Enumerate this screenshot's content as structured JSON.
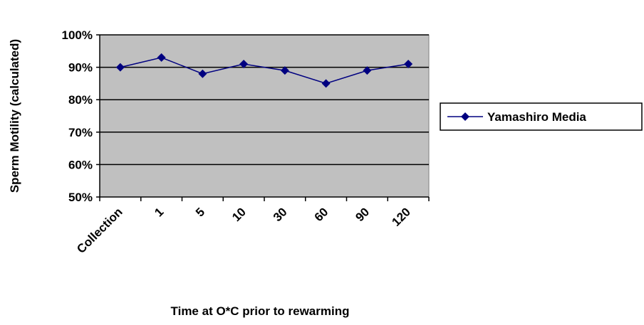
{
  "chart_data": {
    "type": "line",
    "title": "",
    "xlabel": "Time at O*C prior to rewarming",
    "ylabel": "Sperm Motility (calculated)",
    "categories": [
      "Collection",
      "1",
      "5",
      "10",
      "30",
      "60",
      "90",
      "120"
    ],
    "series": [
      {
        "name": "Yamashiro Media",
        "values": [
          90,
          93,
          88,
          91,
          89,
          85,
          89,
          91
        ]
      }
    ],
    "ylim": [
      50,
      100
    ],
    "yticks": [
      50,
      60,
      70,
      80,
      90,
      100
    ],
    "ytick_labels": [
      "50%",
      "60%",
      "70%",
      "80%",
      "90%",
      "100%"
    ],
    "grid": true,
    "legend_position": "right",
    "colors": {
      "series": "#000080",
      "plot_background": "#C0C0C0",
      "gridline": "#000000"
    }
  }
}
